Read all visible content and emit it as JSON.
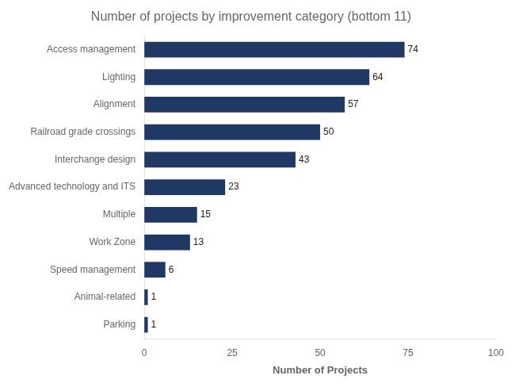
{
  "chart_data": {
    "type": "bar",
    "orientation": "horizontal",
    "title": "Number of projects by improvement category (bottom 11)",
    "categories": [
      "Parking",
      "Animal-related",
      "Speed management",
      "Work Zone",
      "Multiple",
      "Advanced technology and ITS",
      "Interchange design",
      "Railroad grade crossings",
      "Alignment",
      "Lighting",
      "Access management"
    ],
    "values": [
      1,
      1,
      6,
      13,
      15,
      23,
      43,
      50,
      57,
      64,
      74
    ],
    "color": "#1F3864",
    "xlabel": "Number of Projects",
    "xlim": [
      0,
      100
    ],
    "xticks": [
      0,
      25,
      50,
      75,
      100
    ],
    "grid": false,
    "data_labels": true
  }
}
